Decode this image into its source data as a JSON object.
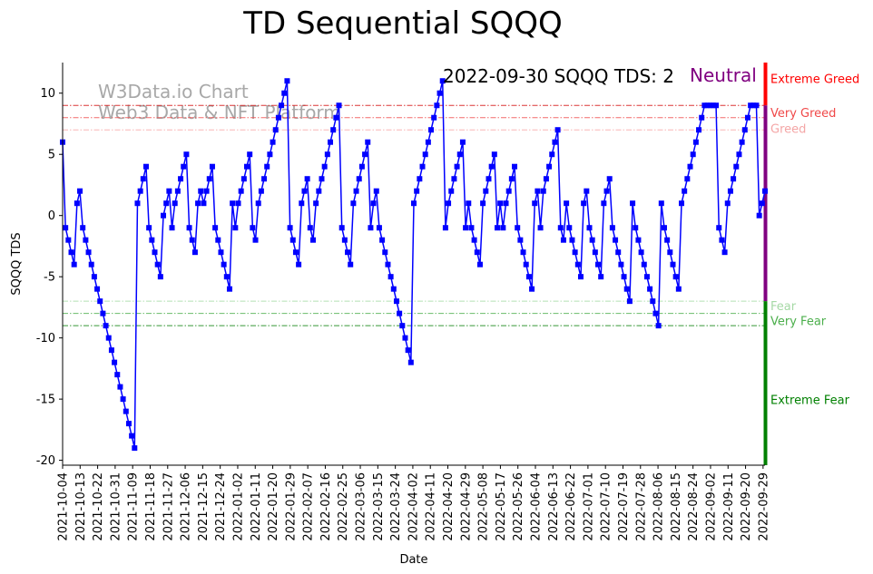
{
  "chart_data": {
    "type": "line",
    "title": "TD Sequential SQQQ",
    "xlabel": "Date",
    "ylabel": "SQQQ TDS",
    "ylim": [
      -20.4,
      12.5
    ],
    "yticks": [
      -20,
      -15,
      -10,
      -5,
      0,
      5,
      10
    ],
    "grid": false,
    "watermark": [
      "W3Data.io Chart",
      "Web3 Data & NFT Platform"
    ],
    "status": {
      "text": "2022-09-30 SQQQ TDS: 2",
      "sentiment": "Neutral",
      "sentiment_color": "#800080"
    },
    "xtick_labels": [
      "2021-10-04",
      "2021-10-13",
      "2021-10-22",
      "2021-10-31",
      "2021-11-09",
      "2021-11-18",
      "2021-11-27",
      "2021-12-06",
      "2021-12-15",
      "2021-12-24",
      "2022-01-02",
      "2022-01-11",
      "2022-01-20",
      "2022-01-29",
      "2022-02-07",
      "2022-02-16",
      "2022-02-25",
      "2022-03-06",
      "2022-03-15",
      "2022-03-24",
      "2022-04-02",
      "2022-04-11",
      "2022-04-20",
      "2022-04-29",
      "2022-05-08",
      "2022-05-17",
      "2022-05-26",
      "2022-06-04",
      "2022-06-13",
      "2022-06-22",
      "2022-07-01",
      "2022-07-10",
      "2022-07-19",
      "2022-07-28",
      "2022-08-06",
      "2022-08-15",
      "2022-08-24",
      "2022-09-02",
      "2022-09-11",
      "2022-09-20",
      "2022-09-29"
    ],
    "series": [
      {
        "name": "SQQQ TDS",
        "color": "#0000ff",
        "x_start": "2021-10-04",
        "x_end": "2022-09-30",
        "values": [
          6,
          -1,
          -2,
          -3,
          -4,
          1,
          2,
          -1,
          -2,
          -3,
          -4,
          -5,
          -6,
          -7,
          -8,
          -9,
          -10,
          -11,
          -12,
          -13,
          -14,
          -15,
          -16,
          -17,
          -18,
          -19,
          1,
          2,
          3,
          4,
          -1,
          -2,
          -3,
          -4,
          -5,
          0,
          1,
          2,
          -1,
          1,
          2,
          3,
          4,
          5,
          -1,
          -2,
          -3,
          1,
          2,
          1,
          2,
          3,
          4,
          -1,
          -2,
          -3,
          -4,
          -5,
          -6,
          1,
          -1,
          1,
          2,
          3,
          4,
          5,
          -1,
          -2,
          1,
          2,
          3,
          4,
          5,
          6,
          7,
          8,
          9,
          10,
          11,
          -1,
          -2,
          -3,
          -4,
          1,
          2,
          3,
          -1,
          -2,
          1,
          2,
          3,
          4,
          5,
          6,
          7,
          8,
          9,
          -1,
          -2,
          -3,
          -4,
          1,
          2,
          3,
          4,
          5,
          6,
          -1,
          1,
          2,
          -1,
          -2,
          -3,
          -4,
          -5,
          -6,
          -7,
          -8,
          -9,
          -10,
          -11,
          -12,
          1,
          2,
          3,
          4,
          5,
          6,
          7,
          8,
          9,
          10,
          11,
          -1,
          1,
          2,
          3,
          4,
          5,
          6,
          -1,
          1,
          -1,
          -2,
          -3,
          -4,
          1,
          2,
          3,
          4,
          5,
          -1,
          1,
          -1,
          1,
          2,
          3,
          4,
          -1,
          -2,
          -3,
          -4,
          -5,
          -6,
          1,
          2,
          -1,
          2,
          3,
          4,
          5,
          6,
          7,
          -1,
          -2,
          1,
          -1,
          -2,
          -3,
          -4,
          -5,
          1,
          2,
          -1,
          -2,
          -3,
          -4,
          -5,
          1,
          2,
          3,
          -1,
          -2,
          -3,
          -4,
          -5,
          -6,
          -7,
          1,
          -1,
          -2,
          -3,
          -4,
          -5,
          -6,
          -7,
          -8,
          -9,
          1,
          -1,
          -2,
          -3,
          -4,
          -5,
          -6,
          1,
          2,
          3,
          4,
          5,
          6,
          7,
          8,
          9,
          9,
          9,
          9,
          9,
          -1,
          -2,
          -3,
          1,
          2,
          3,
          4,
          5,
          6,
          7,
          8,
          9,
          9,
          9,
          0,
          1,
          2
        ]
      }
    ],
    "sentiment_levels": [
      {
        "value": 9,
        "label": "Extreme Greed",
        "color": "#ff0000",
        "line_color": "#d62020",
        "line_opacity": 0.9
      },
      {
        "value": 8,
        "label": "Very Greed",
        "color": "#f04848",
        "line_color": "#f05050",
        "line_opacity": 0.85
      },
      {
        "value": 7,
        "label": "Greed",
        "color": "#f4a6a6",
        "line_color": "#f8a8a8",
        "line_opacity": 0.85
      },
      {
        "value": -7,
        "label": "Fear",
        "color": "#a6d9a6",
        "line_color": "#a8dca8",
        "line_opacity": 0.85
      },
      {
        "value": -8,
        "label": "Very Fear",
        "color": "#4caf4c",
        "line_color": "#50b050",
        "line_opacity": 0.85
      },
      {
        "value": -9,
        "label": "Extreme Fear",
        "color": "#008000",
        "line_color": "#208c20",
        "line_opacity": 0.9
      }
    ],
    "sentiment_bar": [
      {
        "from": 9,
        "to": 12.5,
        "color": "#ff0000"
      },
      {
        "from": -7,
        "to": 9,
        "color": "#800080"
      },
      {
        "from": -20.4,
        "to": -7,
        "color": "#008000"
      }
    ]
  }
}
